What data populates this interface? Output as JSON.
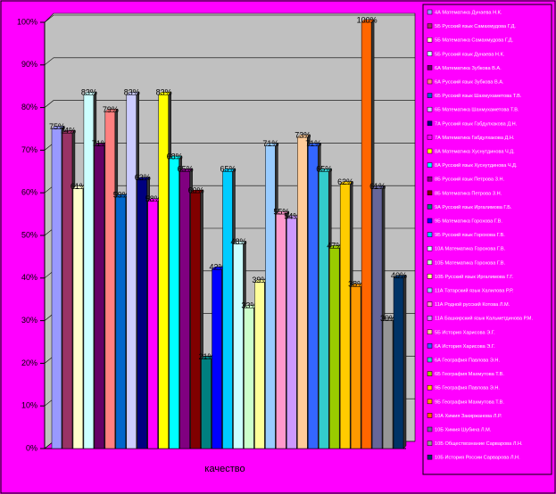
{
  "chart_data": {
    "type": "bar",
    "x_label": "качество",
    "grid": true,
    "legend": "right",
    "ylim": [
      0,
      100
    ],
    "yticks": [
      {
        "value": 0,
        "label": "0%"
      },
      {
        "value": 10,
        "label": "10%"
      },
      {
        "value": 20,
        "label": "20%"
      },
      {
        "value": 30,
        "label": "30%"
      },
      {
        "value": 40,
        "label": "40%"
      },
      {
        "value": 50,
        "label": "50%"
      },
      {
        "value": 60,
        "label": "60%"
      },
      {
        "value": 70,
        "label": "70%"
      },
      {
        "value": 80,
        "label": "80%"
      },
      {
        "value": 90,
        "label": "90%"
      },
      {
        "value": 100,
        "label": "100%"
      }
    ],
    "series": [
      {
        "name": "4А Математика Дунаева Н.К.",
        "color": "#9999ff",
        "values": [
          75
        ],
        "value_labels": [
          "75%"
        ]
      },
      {
        "name": "5Б Русский язык Самахмудова Г.Д.",
        "color": "#993366",
        "values": [
          74
        ],
        "value_labels": [
          "74%"
        ]
      },
      {
        "name": "5Б Математика Самахмудова Г.Д.",
        "color": "#ffffcc",
        "values": [
          61
        ],
        "value_labels": [
          "61%"
        ]
      },
      {
        "name": "5Б Русский язык Дунаева Н.К.",
        "color": "#ccffff",
        "values": [
          83
        ],
        "value_labels": [
          "83%"
        ]
      },
      {
        "name": "6А Математика Зубкова В.А.",
        "color": "#660066",
        "values": [
          71
        ],
        "value_labels": [
          "71%"
        ]
      },
      {
        "name": "6А Русский язык Зубкова В.А.",
        "color": "#ff8080",
        "values": [
          79
        ],
        "value_labels": [
          "79%"
        ]
      },
      {
        "name": "6Б Русский язык Шахмухаметова Т.В.",
        "color": "#0066cc",
        "values": [
          59
        ],
        "value_labels": [
          "59%"
        ]
      },
      {
        "name": "6Б Математика Шахмухаметова Т.В.",
        "color": "#ccccff",
        "values": [
          83
        ],
        "value_labels": [
          "83%"
        ]
      },
      {
        "name": "7А Русский язык Габдулхакова Д.Н.",
        "color": "#000080",
        "values": [
          63
        ],
        "value_labels": [
          "63%"
        ]
      },
      {
        "name": "7А Математика Габдулхакова Д.Н.",
        "color": "#ff00ff",
        "values": [
          58
        ],
        "value_labels": [
          "58%"
        ]
      },
      {
        "name": "8А Математика Хуснутдинова Ч.Д.",
        "color": "#ffff00",
        "values": [
          83
        ],
        "value_labels": [
          "83%"
        ]
      },
      {
        "name": "8А Русский язык Хуснутдинова Ч.Д.",
        "color": "#00ffff",
        "values": [
          68
        ],
        "value_labels": [
          "68%"
        ]
      },
      {
        "name": "8Б Русский язык Петрова З.Н.",
        "color": "#800080",
        "values": [
          65
        ],
        "value_labels": [
          "65%"
        ]
      },
      {
        "name": "8Б Математика Петрова З.Н.",
        "color": "#800000",
        "values": [
          60
        ],
        "value_labels": [
          "60%"
        ]
      },
      {
        "name": "9А Русский язык Иргалимова Г.Б.",
        "color": "#008080",
        "values": [
          21
        ],
        "value_labels": [
          "21%"
        ]
      },
      {
        "name": "9Б Математика Горохова Г.В.",
        "color": "#0000ff",
        "values": [
          42
        ],
        "value_labels": [
          "42%"
        ]
      },
      {
        "name": "9Б Русский язык Горохова Г.В.",
        "color": "#00ccff",
        "values": [
          65
        ],
        "value_labels": [
          "65%"
        ]
      },
      {
        "name": "10А Математика Горохова Г.В.",
        "color": "#ccffff",
        "values": [
          48
        ],
        "value_labels": [
          "48%"
        ]
      },
      {
        "name": "10Б Математика Горохова Г.В.",
        "color": "#ccffcc",
        "values": [
          33
        ],
        "value_labels": [
          "33%"
        ]
      },
      {
        "name": "10Б Русский язык Иргалимова Г.Г.",
        "color": "#ffff99",
        "values": [
          39
        ],
        "value_labels": [
          "39%"
        ]
      },
      {
        "name": "11А Татарский язык Халилова Р.Р.",
        "color": "#99ccff",
        "values": [
          71
        ],
        "value_labels": [
          "71%"
        ]
      },
      {
        "name": "11А Родной русский Котова Л.М.",
        "color": "#ff99cc",
        "values": [
          55
        ],
        "value_labels": [
          "55%"
        ]
      },
      {
        "name": "11А Башкирский язык Кальметдинова Р.М.",
        "color": "#cc99ff",
        "values": [
          54
        ],
        "value_labels": [
          "54%"
        ]
      },
      {
        "name": "5Б История Харисова Э.Г.",
        "color": "#ffcc99",
        "values": [
          73
        ],
        "value_labels": [
          "73%"
        ]
      },
      {
        "name": "6А История Харисова Э.Г.",
        "color": "#3366ff",
        "values": [
          71
        ],
        "value_labels": [
          "71%"
        ]
      },
      {
        "name": "6А География Павлова Э.Н.",
        "color": "#33cccc",
        "values": [
          65
        ],
        "value_labels": [
          "65%"
        ]
      },
      {
        "name": "6Б География Махмутова Т.В.",
        "color": "#99cc00",
        "values": [
          47
        ],
        "value_labels": [
          "47%"
        ]
      },
      {
        "name": "9Б География Павлова Э.Н.",
        "color": "#ffcc00",
        "values": [
          62
        ],
        "value_labels": [
          "62%"
        ]
      },
      {
        "name": "9Б География Махмутова Т.В.",
        "color": "#ff9900",
        "values": [
          38
        ],
        "value_labels": [
          "38%"
        ]
      },
      {
        "name": "10А Химия Закиржанова Л.Р.",
        "color": "#ff6600",
        "values": [
          100
        ],
        "value_labels": [
          "100%"
        ]
      },
      {
        "name": "10Б Химия Шубина Л.М.",
        "color": "#666699",
        "values": [
          61
        ],
        "value_labels": [
          "61%"
        ]
      },
      {
        "name": "10Б Обществознание Сарварова Л.Н.",
        "color": "#969696",
        "values": [
          30
        ],
        "value_labels": [
          "30%"
        ]
      },
      {
        "name": "10Б История России Сарварова Л.Н.",
        "color": "#003366",
        "values": [
          40
        ],
        "value_labels": [
          "40%"
        ]
      }
    ]
  }
}
